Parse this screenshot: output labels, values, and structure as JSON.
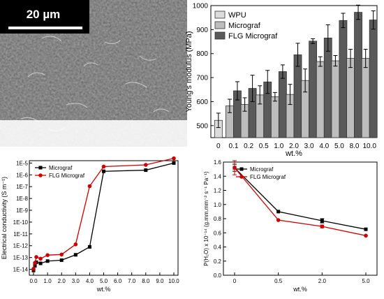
{
  "sem": {
    "scale_bar_label": "20 µm"
  },
  "chart_data": [
    {
      "type": "bar",
      "panel": "top-right",
      "categories": [
        "0",
        "0.1",
        "0.2",
        "0.5",
        "1.0",
        "2.0",
        "3.0",
        "4.0",
        "5.0",
        "8.0",
        "10.0"
      ],
      "xlabel": "wt.%",
      "ylabel": "Young's modulus (MPa)",
      "ylim": [
        450,
        1000
      ],
      "yticks": [
        500,
        600,
        700,
        800,
        900,
        1000
      ],
      "legend_position": "top-left",
      "series": [
        {
          "name": "WPU",
          "color": "#dcdcdc",
          "values": [
            522,
            null,
            null,
            null,
            null,
            null,
            null,
            null,
            null,
            null,
            null
          ],
          "errors": [
            30,
            null,
            null,
            null,
            null,
            null,
            null,
            null,
            null,
            null,
            null
          ]
        },
        {
          "name": "Micrograf",
          "color": "#bdbdbd",
          "values": [
            null,
            582,
            588,
            628,
            620,
            630,
            688,
            767,
            770,
            780,
            780
          ],
          "errors": [
            null,
            28,
            28,
            38,
            18,
            42,
            48,
            20,
            22,
            38,
            38
          ]
        },
        {
          "name": "FLG Micrograf",
          "color": "#5a5a5a",
          "values": [
            null,
            645,
            655,
            682,
            725,
            795,
            852,
            865,
            938,
            972,
            940
          ],
          "errors": [
            null,
            38,
            55,
            48,
            28,
            48,
            10,
            55,
            30,
            30,
            38
          ]
        }
      ]
    },
    {
      "type": "line",
      "panel": "bottom-left",
      "xlabel": "wt.%",
      "ylabel": "Electrical conductivity (S m⁻¹)",
      "xlim": [
        -0.3,
        10.3
      ],
      "ylim_log10": [
        -14.5,
        -4.8
      ],
      "yscale": "log",
      "xticks": [
        "0.0",
        "1.0",
        "2.0",
        "3.0",
        "4.0",
        "5.0",
        "6.0",
        "7.0",
        "8.0",
        "9.0",
        "10.0"
      ],
      "yticks": [
        "1E-14",
        "1E-13",
        "1E-12",
        "1E-11",
        "1E-10",
        "1E-9",
        "1E-8",
        "1E-7",
        "1E-6",
        "1E-5"
      ],
      "legend_position": "top-left",
      "series": [
        {
          "name": "Micrograf",
          "color": "#000000",
          "marker": "square",
          "x": [
            0,
            0.1,
            0.2,
            0.5,
            1.0,
            2.0,
            3.0,
            4.0,
            5.0,
            8.0,
            10.0
          ],
          "y": [
            8e-15,
            2e-14,
            4e-14,
            3.2e-14,
            5e-14,
            6e-14,
            1.7e-13,
            8e-13,
            2e-06,
            2.5e-06,
            1e-05
          ]
        },
        {
          "name": "FLG Micrograf",
          "color": "#cc0000",
          "marker": "circle",
          "x": [
            0,
            0.1,
            0.2,
            0.5,
            1.0,
            2.0,
            3.0,
            4.0,
            5.0,
            8.0,
            10.0
          ],
          "y": [
            1.1e-14,
            3.5e-14,
            1.1e-13,
            8e-14,
            1.6e-13,
            1.8e-13,
            1.3e-12,
            1.1e-07,
            5e-06,
            7e-06,
            2.5e-05
          ]
        }
      ]
    },
    {
      "type": "line",
      "panel": "bottom-right",
      "xlabel": "wt.%",
      "ylabel": "P(H₂O) x 10⁻¹⁴ (g.mm.mm⁻² s⁻¹ Pa⁻¹)",
      "categories": [
        "0",
        "0.5",
        "2.0",
        "5.0"
      ],
      "ylim": [
        0.0,
        1.6
      ],
      "yticks": [
        "0.0",
        "0.2",
        "0.4",
        "0.6",
        "0.8",
        "1.0",
        "1.2",
        "1.4",
        "1.6"
      ],
      "legend_position": "top-left",
      "series": [
        {
          "name": "Micrograf",
          "color": "#000000",
          "marker": "square",
          "values": [
            1.52,
            0.9,
            0.77,
            0.65
          ],
          "errors": [
            0.05,
            0,
            0.03,
            0
          ]
        },
        {
          "name": "FLG Micrograf",
          "color": "#cc0000",
          "marker": "circle",
          "values": [
            1.52,
            0.78,
            0.69,
            0.56
          ],
          "errors": [
            0.1,
            0,
            0.02,
            0
          ]
        }
      ]
    }
  ]
}
